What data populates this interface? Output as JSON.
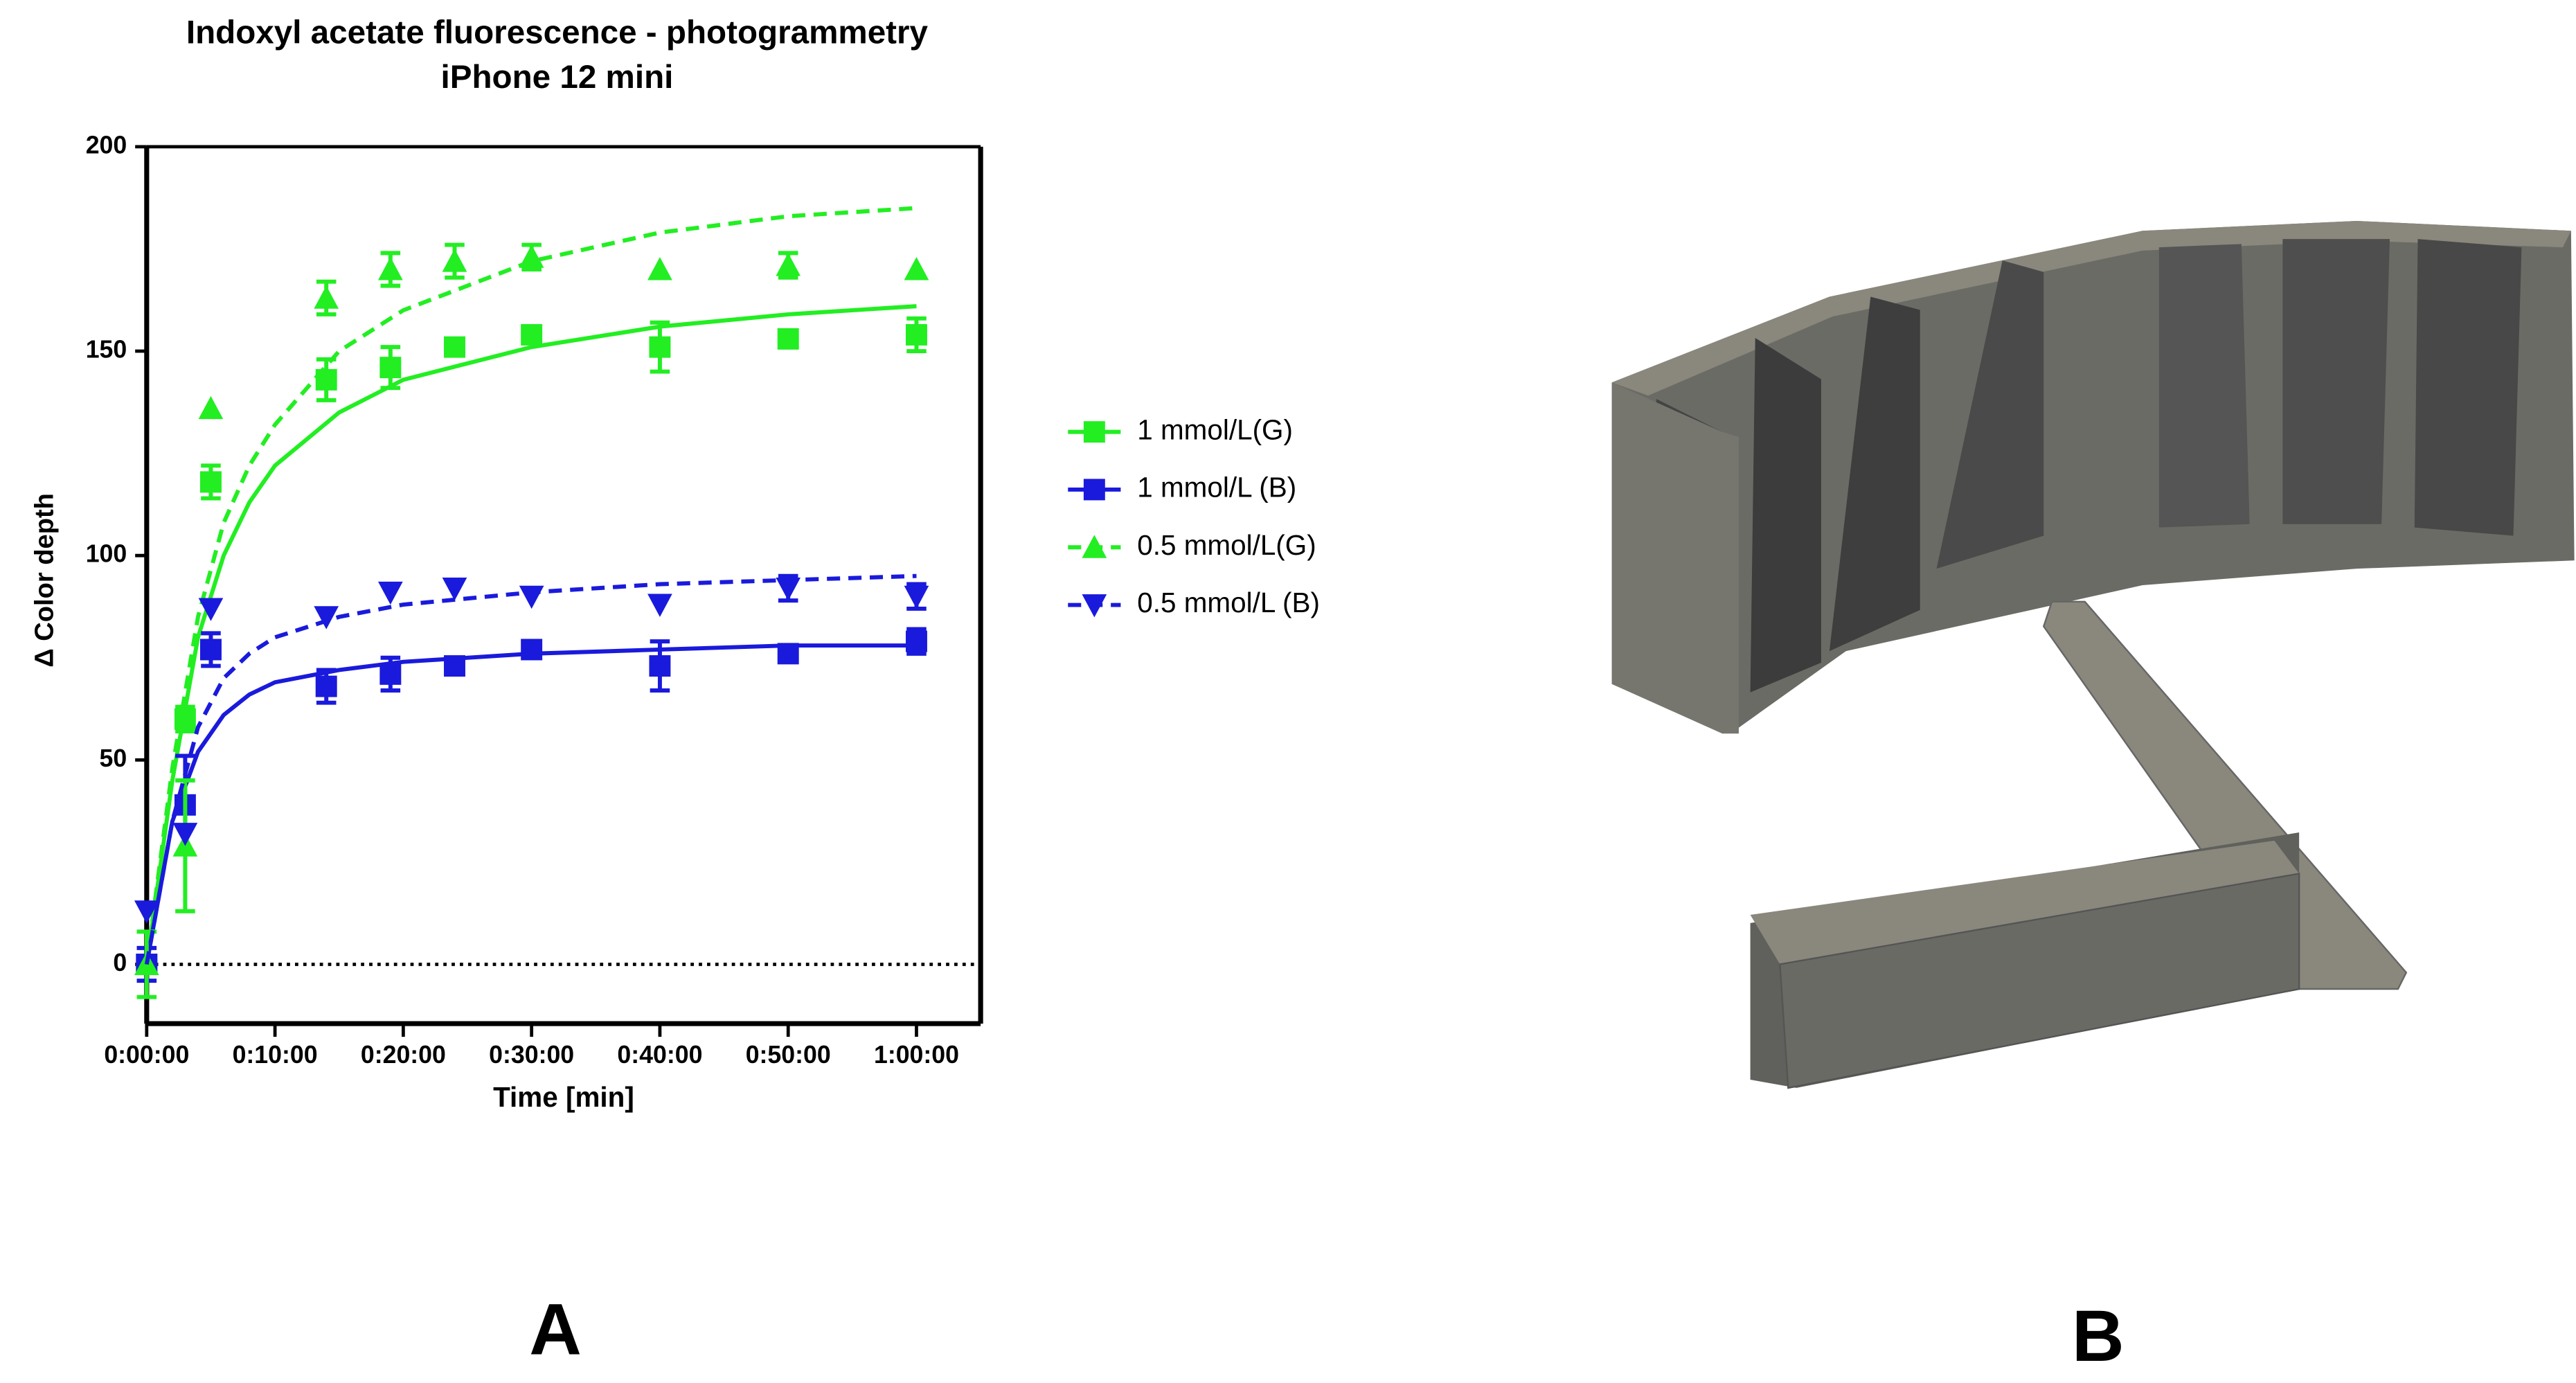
{
  "chart_data": {
    "type": "scatter",
    "title": "Indoxyl acetate fluorescence - photogrammetry",
    "subtitle": "iPhone 12 mini",
    "xlabel": "Time [min]",
    "ylabel": "Δ Color depth",
    "panel_label": "A",
    "x": [
      0,
      3,
      5,
      14,
      19,
      24,
      30,
      40,
      50,
      60
    ],
    "fit_x": [
      0,
      2,
      4,
      6,
      8,
      10,
      15,
      20,
      30,
      40,
      50,
      60
    ],
    "xlim": [
      0,
      65
    ],
    "xticks": [
      {
        "value": 0,
        "label": "0:00:00"
      },
      {
        "value": 10,
        "label": "0:10:00"
      },
      {
        "value": 20,
        "label": "0:20:00"
      },
      {
        "value": 30,
        "label": "0:30:00"
      },
      {
        "value": 40,
        "label": "0:40:00"
      },
      {
        "value": 50,
        "label": "0:50:00"
      },
      {
        "value": 60,
        "label": "1:00:00"
      }
    ],
    "ylim": [
      -14.5,
      200
    ],
    "yticks": [
      0,
      50,
      100,
      150,
      200
    ],
    "legend": "right",
    "series": [
      {
        "name": "1 mmol/L(G)",
        "color": "#22ee22",
        "marker": "square",
        "line_style": "solid",
        "values": [
          0,
          60,
          118,
          143,
          146,
          151,
          154,
          151,
          153,
          154
        ],
        "errors": [
          null,
          3,
          4,
          5,
          5,
          null,
          null,
          6,
          null,
          4
        ],
        "fit": [
          0,
          45,
          80,
          100,
          113,
          122,
          135,
          143,
          151,
          156,
          159,
          161
        ]
      },
      {
        "name": "1 mmol/L (B)",
        "color": "#1a1adc",
        "marker": "square",
        "line_style": "solid",
        "values": [
          0,
          39,
          77,
          68,
          71,
          73,
          77,
          73,
          76,
          79
        ],
        "errors": [
          4,
          12,
          4,
          4,
          4,
          null,
          null,
          6,
          null,
          3
        ],
        "fit": [
          0,
          35,
          52,
          61,
          66,
          69,
          72,
          74,
          76,
          77,
          78,
          78
        ]
      },
      {
        "name": "0.5 mmol/L(G)",
        "color": "#22ee22",
        "marker": "triangle-up",
        "line_style": "dashed",
        "values": [
          0,
          29,
          136,
          163,
          170,
          172,
          173,
          170,
          171,
          170
        ],
        "errors": [
          8,
          16,
          null,
          4,
          4,
          4,
          3,
          null,
          3,
          null
        ],
        "fit": [
          0,
          48,
          85,
          108,
          122,
          132,
          150,
          160,
          172,
          179,
          183,
          185
        ]
      },
      {
        "name": "0.5 mmol/L (B)",
        "color": "#1a1adc",
        "marker": "triangle-down",
        "line_style": "dashed",
        "values": [
          13,
          32,
          87,
          85,
          91,
          92,
          90,
          88,
          92,
          90
        ],
        "errors": [
          null,
          null,
          null,
          null,
          null,
          null,
          null,
          null,
          3,
          3
        ],
        "fit": [
          0,
          35,
          58,
          70,
          76,
          80,
          85,
          88,
          91,
          93,
          94,
          95
        ]
      }
    ]
  },
  "figure_b": {
    "panel_label": "B"
  }
}
